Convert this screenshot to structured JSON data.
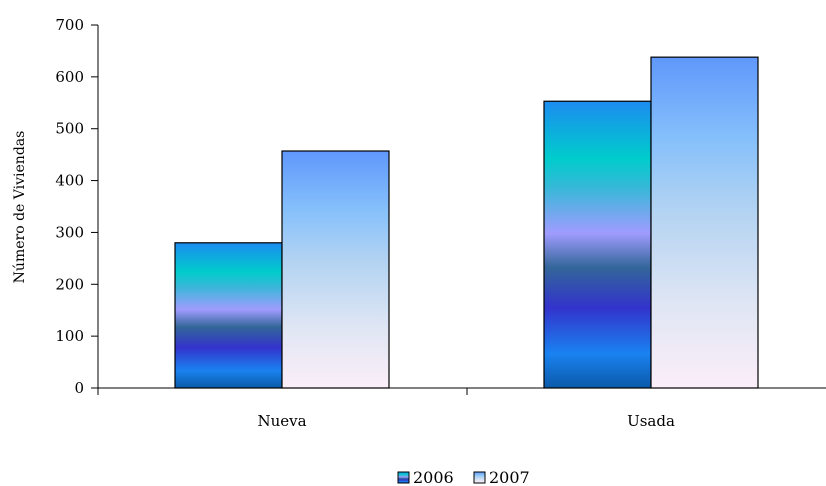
{
  "chart_data": {
    "type": "bar",
    "categories": [
      "Nueva",
      "Usada"
    ],
    "series": [
      {
        "name": "2006",
        "values": [
          280,
          553
        ]
      },
      {
        "name": "2007",
        "values": [
          457,
          638
        ]
      }
    ],
    "ylabel": "Número de Viviendas",
    "xlabel": "",
    "ylim": [
      0,
      700
    ],
    "yticks": [
      0,
      100,
      200,
      300,
      400,
      500,
      600,
      700
    ],
    "grid": false,
    "legend": "bottom",
    "colors": {
      "2006": [
        "#0070c0",
        "#1a82f0",
        "#3333cc",
        "#336699",
        "#9999ff",
        "#00cccc",
        "#1c8cf0"
      ],
      "2007": [
        "#fbeef8",
        "#e4e8f4",
        "#b9d4ee",
        "#8fc4fb",
        "#63a1fb"
      ]
    }
  }
}
